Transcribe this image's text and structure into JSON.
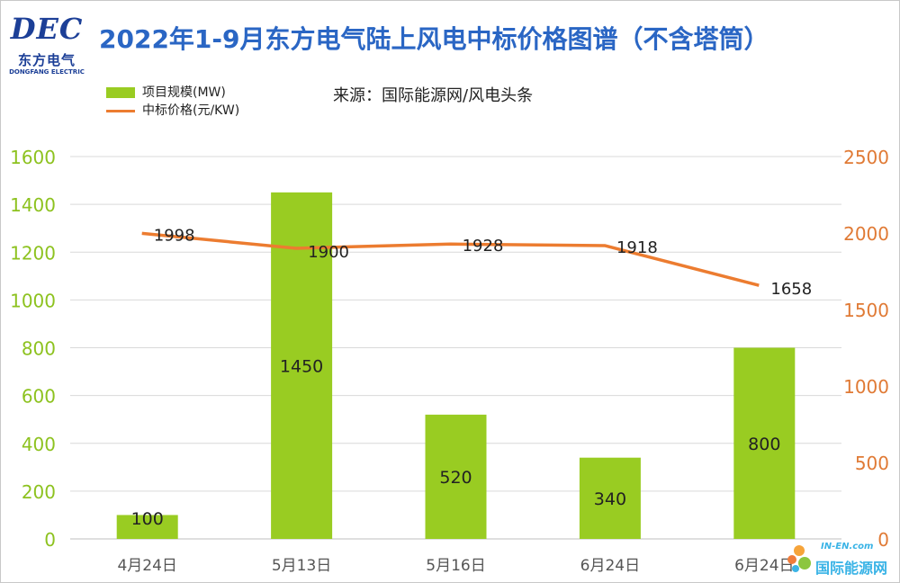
{
  "logo": {
    "mark": "DEC",
    "name_cn": "东方电气",
    "name_en": "DONGFANG ELECTRIC"
  },
  "watermark": {
    "en": "IN-EN.com",
    "cn": "国际能源网"
  },
  "source": "来源：国际能源网/风电头条",
  "colors": {
    "bar": "#99cc22",
    "line": "#ec7c30",
    "title": "#2a66c4",
    "left_axis": "#8dc21f",
    "right_axis": "#e07a35"
  },
  "chart_data": {
    "type": "bar",
    "title": "2022年1-9月东方电气陆上风电中标价格图谱（不含塔筒）",
    "categories": [
      "4月24日",
      "5月13日",
      "5月16日",
      "6月24日",
      "6月24日"
    ],
    "series": [
      {
        "name": "项目规模(MW)",
        "type": "bar",
        "axis": "left",
        "values": [
          100,
          1450,
          520,
          340,
          800
        ]
      },
      {
        "name": "中标价格(元/KW)",
        "type": "line",
        "axis": "right",
        "values": [
          1998,
          1900,
          1928,
          1918,
          1658
        ]
      }
    ],
    "y_left": {
      "min": 0,
      "max": 1600,
      "ticks": [
        0,
        200,
        400,
        600,
        800,
        1000,
        1200,
        1400,
        1600
      ]
    },
    "y_right": {
      "min": 0,
      "max": 2500,
      "ticks": [
        0,
        500,
        1000,
        1500,
        2000,
        2500
      ]
    },
    "grid": true,
    "legend": "top-left"
  }
}
